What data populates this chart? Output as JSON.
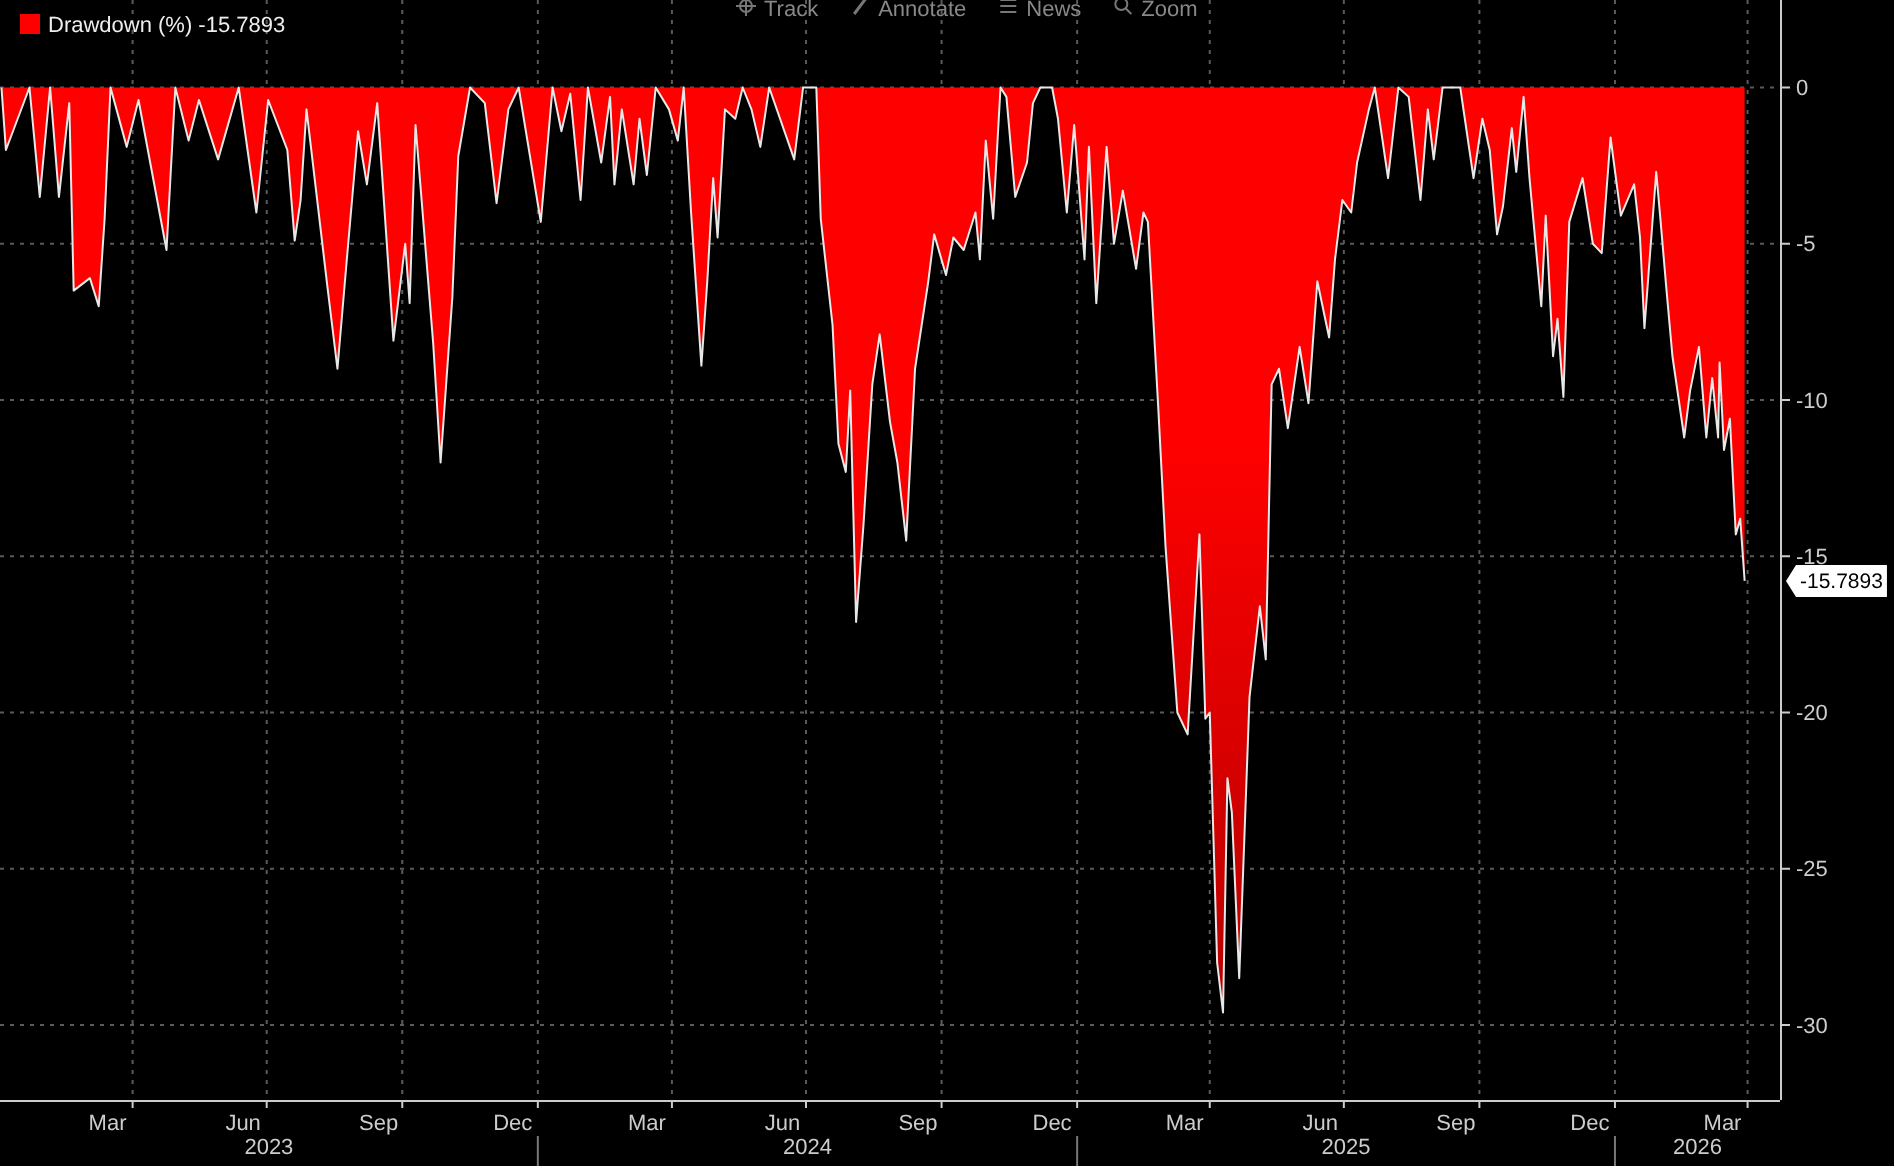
{
  "chart_data": {
    "type": "area",
    "legend": "top left",
    "grid": true,
    "series": [
      {
        "name": "Drawdown (%) -15.7893",
        "color": "#ff0000",
        "x": [
          "2023-01-02",
          "2023-01-05",
          "2023-01-21",
          "2023-01-28",
          "2023-02-04",
          "2023-02-10",
          "2023-02-17",
          "2023-02-20",
          "2023-03-03",
          "2023-03-09",
          "2023-03-13",
          "2023-03-17",
          "2023-03-28",
          "2023-04-05",
          "2023-04-24",
          "2023-04-30",
          "2023-05-09",
          "2023-05-16",
          "2023-05-29",
          "2023-06-12",
          "2023-06-24",
          "2023-07-02",
          "2023-07-15",
          "2023-07-20",
          "2023-07-24",
          "2023-07-28",
          "2023-08-11",
          "2023-08-18",
          "2023-08-24",
          "2023-09-01",
          "2023-09-07",
          "2023-09-14",
          "2023-09-25",
          "2023-10-03",
          "2023-10-06",
          "2023-10-10",
          "2023-10-22",
          "2023-10-27",
          "2023-11-04",
          "2023-11-08",
          "2023-11-16",
          "2023-11-26",
          "2023-12-04",
          "2023-12-12",
          "2023-12-19",
          "2024-01-03",
          "2024-01-11",
          "2024-01-17",
          "2024-01-23",
          "2024-01-30",
          "2024-02-04",
          "2024-02-13",
          "2024-02-19",
          "2024-02-22",
          "2024-02-27",
          "2024-03-06",
          "2024-03-10",
          "2024-03-15",
          "2024-03-21",
          "2024-03-30",
          "2024-04-05",
          "2024-04-09",
          "2024-04-14",
          "2024-04-21",
          "2024-04-25",
          "2024-04-29",
          "2024-05-02",
          "2024-05-07",
          "2024-05-14",
          "2024-05-19",
          "2024-05-25",
          "2024-05-31",
          "2024-06-06",
          "2024-06-23",
          "2024-06-29",
          "2024-07-08",
          "2024-07-11",
          "2024-07-19",
          "2024-07-23",
          "2024-07-28",
          "2024-07-31",
          "2024-08-04",
          "2024-08-09",
          "2024-08-15",
          "2024-08-20",
          "2024-08-27",
          "2024-09-01",
          "2024-09-07",
          "2024-09-13",
          "2024-09-22",
          "2024-09-26",
          "2024-10-04",
          "2024-10-09",
          "2024-10-16",
          "2024-10-24",
          "2024-10-27",
          "2024-10-31",
          "2024-11-05",
          "2024-11-10",
          "2024-11-14",
          "2024-11-20",
          "2024-11-28",
          "2024-12-02",
          "2024-12-07",
          "2024-12-15",
          "2024-12-19",
          "2024-12-25",
          "2024-12-30",
          "2025-01-06",
          "2025-01-09",
          "2025-01-14",
          "2025-01-21",
          "2025-01-26",
          "2025-02-01",
          "2025-02-10",
          "2025-02-15",
          "2025-02-18",
          "2025-02-25",
          "2025-03-02",
          "2025-03-10",
          "2025-03-17",
          "2025-03-25",
          "2025-03-29",
          "2025-04-01",
          "2025-04-06",
          "2025-04-10",
          "2025-04-13",
          "2025-04-16",
          "2025-04-21",
          "2025-04-28",
          "2025-05-05",
          "2025-05-09",
          "2025-05-13",
          "2025-05-18",
          "2025-05-24",
          "2025-06-01",
          "2025-06-07",
          "2025-06-13",
          "2025-06-21",
          "2025-06-25",
          "2025-06-30",
          "2025-07-06",
          "2025-07-10",
          "2025-07-18",
          "2025-07-22",
          "2025-07-31",
          "2025-08-07",
          "2025-08-14",
          "2025-08-22",
          "2025-08-27",
          "2025-08-31",
          "2025-09-06",
          "2025-09-18",
          "2025-09-27",
          "2025-10-03",
          "2025-10-08",
          "2025-10-13",
          "2025-10-17",
          "2025-10-23",
          "2025-10-26",
          "2025-10-31",
          "2025-11-04",
          "2025-11-12",
          "2025-11-15",
          "2025-11-20",
          "2025-11-23",
          "2025-11-27",
          "2025-12-01",
          "2025-12-10",
          "2025-12-17",
          "2025-12-23",
          "2025-12-29",
          "2026-01-05",
          "2026-01-14",
          "2026-01-18",
          "2026-01-21",
          "2026-01-29",
          "2026-02-01",
          "2026-02-05",
          "2026-02-09",
          "2026-02-17",
          "2026-02-21",
          "2026-02-27",
          "2026-03-04",
          "2026-03-08",
          "2026-03-12",
          "2026-03-13",
          "2026-03-16",
          "2026-03-20",
          "2026-03-24",
          "2026-03-27",
          "2026-03-30"
        ],
        "values": [
          0,
          -2.0,
          0,
          -3.5,
          0,
          -3.5,
          -0.5,
          -6.5,
          -6.1,
          -7.0,
          -4.2,
          0,
          -1.9,
          -0.4,
          -5.2,
          0,
          -1.7,
          -0.4,
          -2.3,
          0,
          -4.0,
          -0.4,
          -2.0,
          -4.9,
          -3.6,
          -0.7,
          -6.3,
          -9.0,
          -5.7,
          -1.4,
          -3.1,
          -0.5,
          -8.1,
          -5.0,
          -6.9,
          -1.2,
          -8.2,
          -12.0,
          -6.7,
          -2.2,
          0,
          -0.5,
          -3.7,
          -0.7,
          0,
          -4.3,
          0,
          -1.4,
          -0.2,
          -3.6,
          0,
          -2.4,
          -0.3,
          -3.1,
          -0.7,
          -3.1,
          -1.0,
          -2.8,
          0,
          -0.7,
          -1.7,
          0,
          -4.0,
          -8.9,
          -6.2,
          -2.9,
          -4.8,
          -0.7,
          -1.0,
          0,
          -0.7,
          -1.9,
          0,
          -2.3,
          0,
          0,
          -4.2,
          -7.6,
          -11.4,
          -12.3,
          -9.7,
          -17.1,
          -14.0,
          -9.5,
          -7.9,
          -10.7,
          -12.0,
          -14.5,
          -9.0,
          -6.2,
          -4.7,
          -6.0,
          -4.8,
          -5.2,
          -4.0,
          -5.5,
          -1.7,
          -4.2,
          0,
          -0.3,
          -3.5,
          -2.4,
          -0.5,
          0,
          0,
          -1.0,
          -4.0,
          -1.2,
          -5.5,
          -1.9,
          -6.9,
          -1.9,
          -5.0,
          -3.3,
          -5.8,
          -4.0,
          -4.3,
          -10.2,
          -14.7,
          -20.0,
          -20.7,
          -14.3,
          -20.2,
          -20.0,
          -28.0,
          -29.6,
          -22.1,
          -23.2,
          -28.5,
          -19.5,
          -16.6,
          -18.3,
          -9.5,
          -9.0,
          -10.9,
          -8.3,
          -10.1,
          -6.2,
          -8.0,
          -5.5,
          -3.6,
          -4.0,
          -2.4,
          -0.7,
          0,
          -2.9,
          0,
          -0.3,
          -3.6,
          -0.7,
          -2.3,
          0,
          0,
          -2.9,
          -1.0,
          -2.0,
          -4.7,
          -3.8,
          -1.3,
          -2.7,
          -0.3,
          -2.9,
          -7.0,
          -4.1,
          -8.6,
          -7.4,
          -9.9,
          -4.3,
          -2.9,
          -5.0,
          -5.3,
          -1.6,
          -4.1,
          -3.1,
          -4.8,
          -7.7,
          -2.7,
          -4.3,
          -6.5,
          -8.6,
          -11.2,
          -9.7,
          -8.3,
          -11.2,
          -9.3,
          -11.2,
          -8.8,
          -11.6,
          -10.6,
          -14.3,
          -13.8,
          -15.7893
        ]
      }
    ],
    "xlim": [
      "2023-01-01",
      "2026-04-23"
    ],
    "xticks": [
      {
        "value": "2023-03-15",
        "label": "Mar"
      },
      {
        "value": "2023-06-15",
        "label": "Jun"
      },
      {
        "value": "2023-09-15",
        "label": "Sep"
      },
      {
        "value": "2023-12-15",
        "label": "Dec"
      },
      {
        "value": "2024-03-15",
        "label": "Mar"
      },
      {
        "value": "2024-06-15",
        "label": "Jun"
      },
      {
        "value": "2024-09-15",
        "label": "Sep"
      },
      {
        "value": "2024-12-15",
        "label": "Dec"
      },
      {
        "value": "2025-03-15",
        "label": "Mar"
      },
      {
        "value": "2025-06-15",
        "label": "Jun"
      },
      {
        "value": "2025-09-15",
        "label": "Sep"
      },
      {
        "value": "2025-12-15",
        "label": "Dec"
      },
      {
        "value": "2026-03-15",
        "label": "Mar"
      },
      {
        "value": "2023-04-01",
        "label": null
      },
      {
        "value": "2023-07-01",
        "label": null
      },
      {
        "value": "2023-10-01",
        "label": null
      },
      {
        "value": "2024-01-01",
        "label": null
      },
      {
        "value": "2024-04-01",
        "label": null
      },
      {
        "value": "2024-07-01",
        "label": null
      },
      {
        "value": "2024-10-01",
        "label": null
      },
      {
        "value": "2025-01-01",
        "label": null
      },
      {
        "value": "2025-04-01",
        "label": null
      },
      {
        "value": "2025-07-01",
        "label": null
      },
      {
        "value": "2025-10-01",
        "label": null
      },
      {
        "value": "2026-01-01",
        "label": null
      },
      {
        "value": "2026-04-01",
        "label": null
      }
    ],
    "ylim": [
      -32.4,
      2.8
    ],
    "yticks": [
      0,
      -5,
      -10,
      -15,
      -20,
      -25,
      -30
    ],
    "annotations": [
      "2023",
      "2024",
      "2025",
      "2026",
      {
        "text": "-15.7893",
        "x": "2026-03-30",
        "y": -15.7893
      },
      "Track",
      "Annotate",
      "News",
      "Zoom"
    ]
  }
}
